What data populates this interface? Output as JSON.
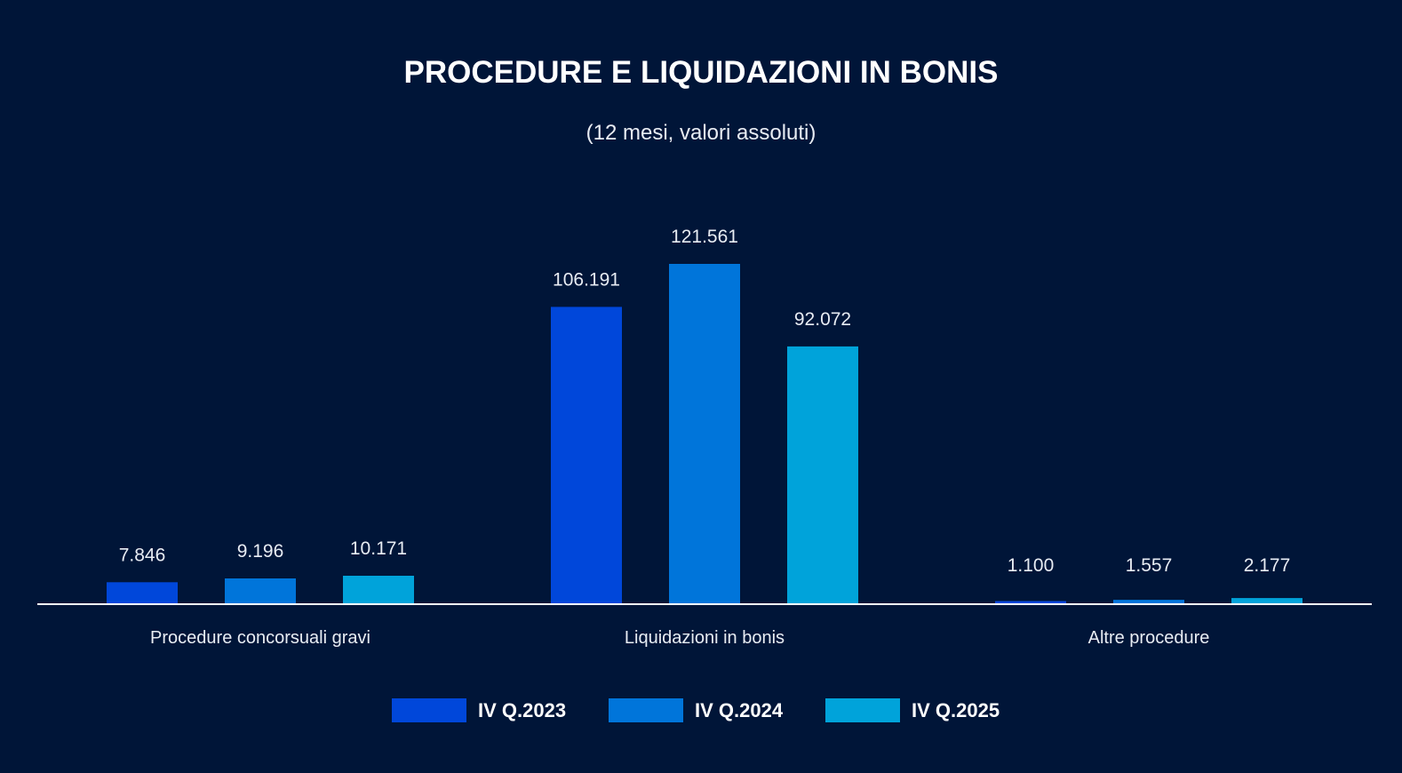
{
  "chart_data": {
    "type": "bar",
    "title": "PROCEDURE E LIQUIDAZIONI IN BONIS",
    "subtitle": "(12 mesi, valori assoluti)",
    "categories": [
      "Procedure concorsuali gravi",
      "Liquidazioni in bonis",
      "Altre procedure"
    ],
    "series": [
      {
        "name": "IV Q.2023",
        "color": "#0047DA",
        "values": [
          7846,
          106191,
          1100
        ],
        "labels": [
          "7.846",
          "106.191",
          "1.100"
        ]
      },
      {
        "name": "IV Q.2024",
        "color": "#0075DA",
        "values": [
          9196,
          121561,
          1557
        ],
        "labels": [
          "9.196",
          "121.561",
          "1.557"
        ]
      },
      {
        "name": "IV Q.2025",
        "color": "#00A3DA",
        "values": [
          10171,
          92072,
          2177
        ],
        "labels": [
          "10.171",
          "92.072",
          "2.177"
        ]
      }
    ],
    "ylim": [
      0,
      121561
    ],
    "grid": false,
    "legend_position": "bottom-center"
  }
}
